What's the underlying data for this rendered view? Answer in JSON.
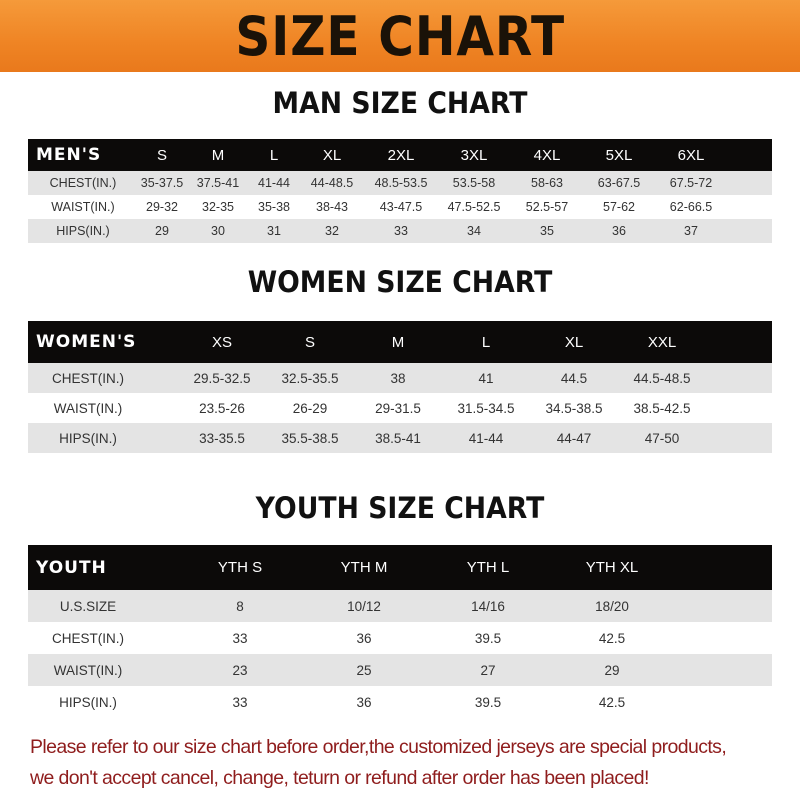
{
  "banner": {
    "title": "SIZE CHART",
    "color": "#ef8424"
  },
  "men": {
    "title": "MAN SIZE CHART",
    "headers": [
      "MEN'S",
      "S",
      "M",
      "L",
      "XL",
      "2XL",
      "3XL",
      "4XL",
      "5XL",
      "6XL"
    ],
    "rows": [
      [
        "CHEST(IN.)",
        "35-37.5",
        "37.5-41",
        "41-44",
        "44-48.5",
        "48.5-53.5",
        "53.5-58",
        "58-63",
        "63-67.5",
        "67.5-72"
      ],
      [
        "WAIST(IN.)",
        "29-32",
        "32-35",
        "35-38",
        "38-43",
        "43-47.5",
        "47.5-52.5",
        "52.5-57",
        "57-62",
        "62-66.5"
      ],
      [
        "HIPS(IN.)",
        "29",
        "30",
        "31",
        "32",
        "33",
        "34",
        "35",
        "36",
        "37"
      ]
    ]
  },
  "women": {
    "title": "WOMEN SIZE CHART",
    "headers": [
      "WOMEN'S",
      "XS",
      "S",
      "M",
      "L",
      "XL",
      "XXL"
    ],
    "rows": [
      [
        "CHEST(IN.)",
        "29.5-32.5",
        "32.5-35.5",
        "38",
        "41",
        "44.5",
        "44.5-48.5"
      ],
      [
        "WAIST(IN.)",
        "23.5-26",
        "26-29",
        "29-31.5",
        "31.5-34.5",
        "34.5-38.5",
        "38.5-42.5"
      ],
      [
        "HIPS(IN.)",
        "33-35.5",
        "35.5-38.5",
        "38.5-41",
        "41-44",
        "44-47",
        "47-50"
      ]
    ]
  },
  "youth": {
    "title": "YOUTH SIZE CHART",
    "headers": [
      "YOUTH",
      "YTH S",
      "YTH M",
      "YTH L",
      "YTH XL"
    ],
    "rows": [
      [
        "U.S.SIZE",
        "8",
        "10/12",
        "14/16",
        "18/20"
      ],
      [
        "CHEST(IN.)",
        "33",
        "36",
        "39.5",
        "42.5"
      ],
      [
        "WAIST(IN.)",
        "23",
        "25",
        "27",
        "29"
      ],
      [
        "HIPS(IN.)",
        "33",
        "36",
        "39.5",
        "42.5"
      ]
    ]
  },
  "notice": {
    "line1": "Please refer to our size chart before order,the customized jerseys are special products,",
    "line2": "we don't accept cancel, change, teturn or refund after order has been placed!",
    "color": "#8f1d1d"
  }
}
